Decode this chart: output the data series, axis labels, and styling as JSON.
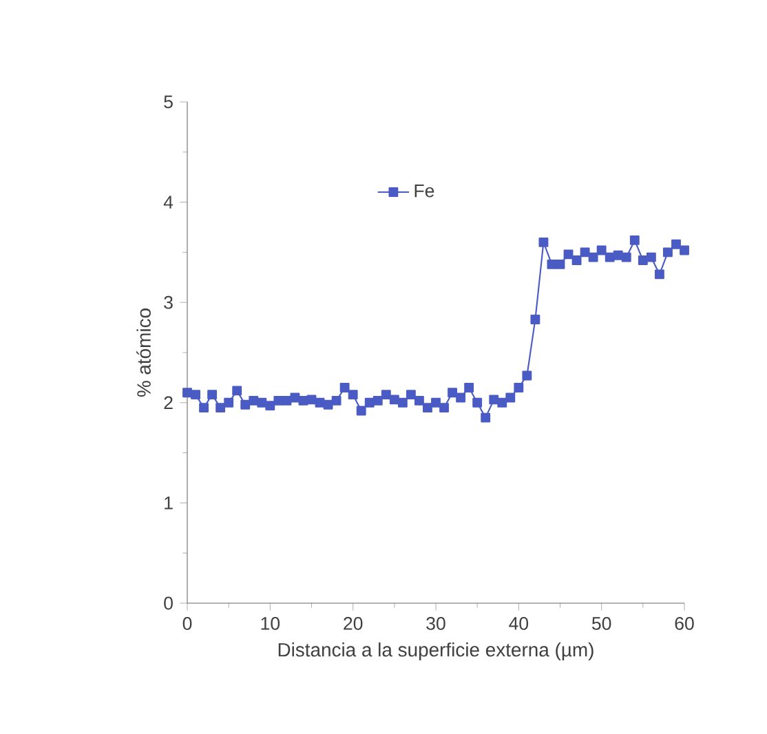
{
  "chart_data": {
    "type": "line",
    "xlabel": "Distancia a la superficie externa (µm)",
    "ylabel": "% atómico",
    "x": [
      0,
      1,
      2,
      3,
      4,
      5,
      6,
      7,
      8,
      9,
      10,
      11,
      12,
      13,
      14,
      15,
      16,
      17,
      18,
      19,
      20,
      21,
      22,
      23,
      24,
      25,
      26,
      27,
      28,
      29,
      30,
      31,
      32,
      33,
      34,
      35,
      36,
      37,
      38,
      39,
      40,
      41,
      42,
      43,
      44,
      45,
      46,
      47,
      48,
      49,
      50,
      51,
      52,
      53,
      54,
      55,
      56,
      57,
      58,
      59,
      60
    ],
    "series": [
      {
        "name": "Fe",
        "color": "#4a5bc4",
        "values": [
          2.1,
          2.08,
          1.95,
          2.08,
          1.95,
          2.0,
          2.12,
          1.98,
          2.02,
          2.0,
          1.97,
          2.02,
          2.02,
          2.05,
          2.02,
          2.03,
          2.0,
          1.98,
          2.02,
          2.15,
          2.08,
          1.92,
          2.0,
          2.02,
          2.08,
          2.03,
          2.0,
          2.08,
          2.02,
          1.95,
          2.0,
          1.95,
          2.1,
          2.05,
          2.15,
          2.0,
          1.85,
          2.03,
          2.0,
          2.05,
          2.15,
          2.27,
          2.83,
          3.6,
          3.38,
          3.38,
          3.48,
          3.42,
          3.5,
          3.45,
          3.52,
          3.45,
          3.47,
          3.45,
          3.62,
          3.42,
          3.45,
          3.28,
          3.5,
          3.58,
          3.52
        ]
      }
    ],
    "xlim": [
      0,
      60
    ],
    "ylim": [
      0,
      5
    ],
    "xticks": [
      0,
      10,
      20,
      30,
      40,
      50,
      60
    ],
    "yticks": [
      0,
      1,
      2,
      3,
      4,
      5
    ],
    "legend": "top",
    "marker": "square",
    "line_style": "solid",
    "grid": false
  }
}
